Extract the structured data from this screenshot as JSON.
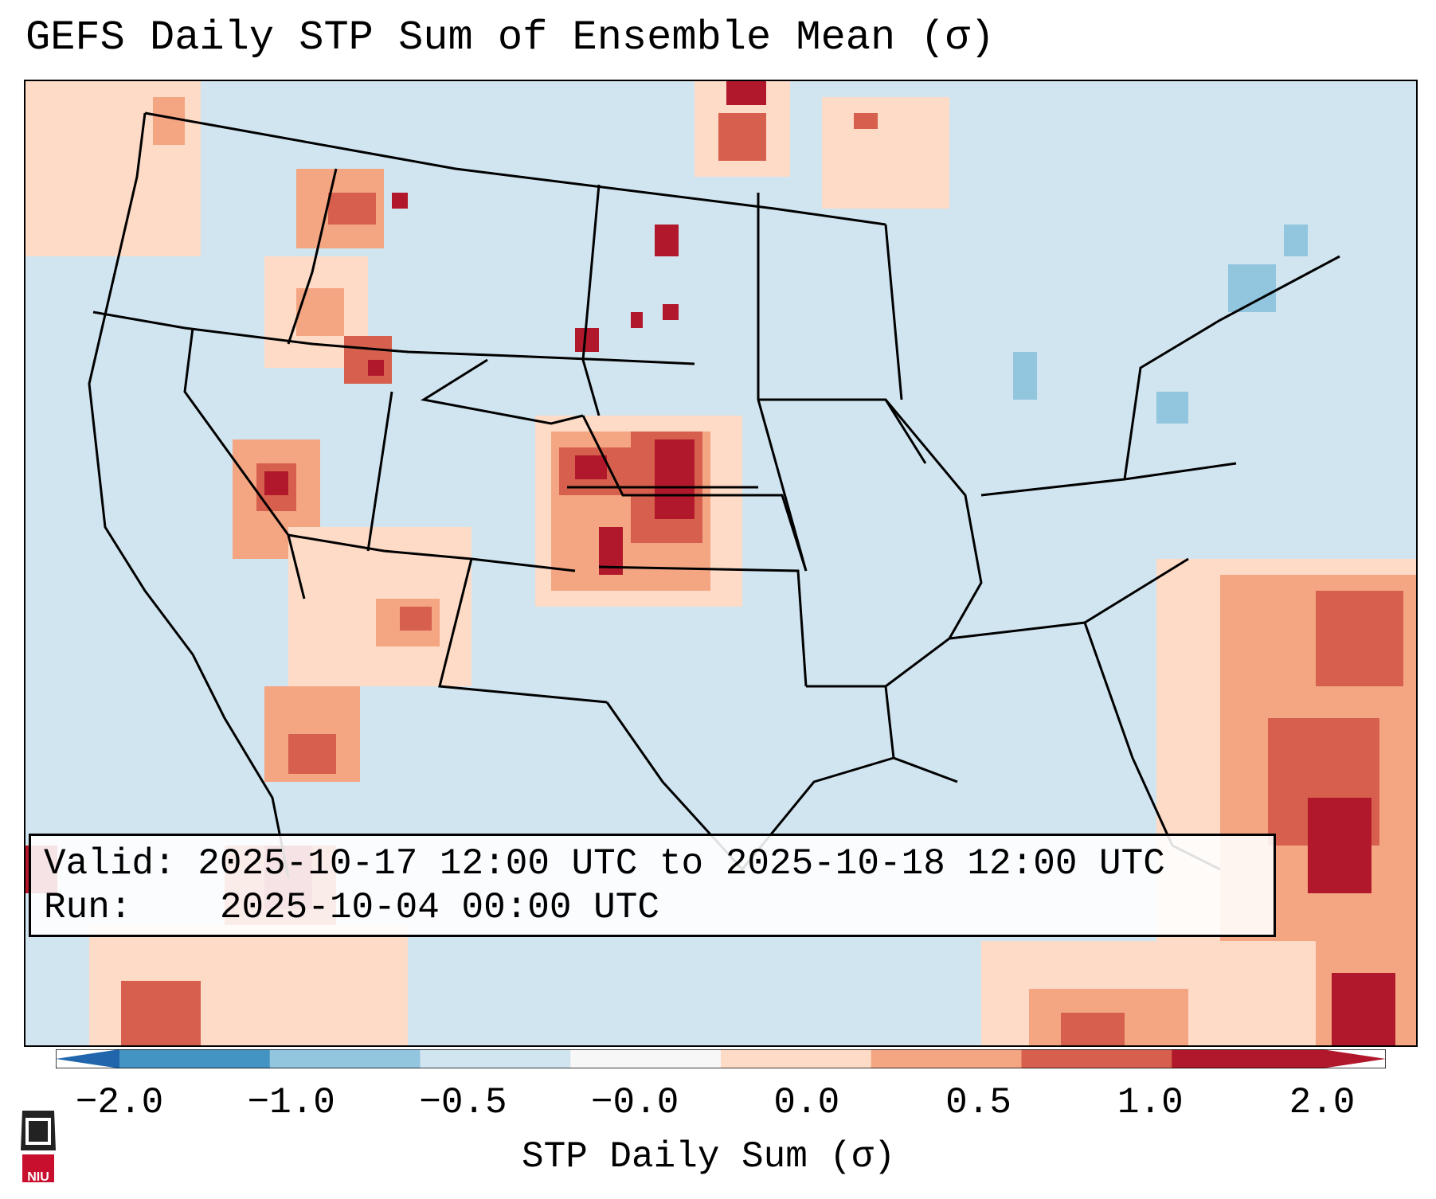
{
  "title": "GEFS Daily STP Sum of Ensemble Mean (σ)",
  "info": {
    "valid_label": "Valid:",
    "valid_value": "2025-10-17 12:00 UTC to 2025-10-18 12:00 UTC",
    "run_label": "Run:",
    "run_value": "2025-10-04 00:00 UTC"
  },
  "colorbar": {
    "label": "STP Daily Sum (σ)",
    "ticks": [
      "−2.0",
      "−1.0",
      "−0.5",
      "−0.0",
      "0.0",
      "0.5",
      "1.0",
      "2.0"
    ],
    "bin_colors": [
      "#4393c3",
      "#92c5de",
      "#d1e5f0",
      "#f7f7f7",
      "#fddbc7",
      "#f4a582",
      "#d6604d",
      "#b2182b"
    ],
    "under_color": "#2166ac",
    "over_color": "#b2182b",
    "extend": "both"
  },
  "map": {
    "projection": "lambert-conformal",
    "region": "CONUS",
    "background_color": "#d1e5f0",
    "boundary_color": "#000000",
    "anomaly_regions": [
      {
        "area": "Washington/Idaho panhandle",
        "level": "moderate"
      },
      {
        "area": "Eastern Oregon/Idaho",
        "level": "moderate"
      },
      {
        "area": "Nevada",
        "level": "moderate"
      },
      {
        "area": "Southwest Arizona/New Mexico",
        "level": "weak-moderate"
      },
      {
        "area": "Eastern Colorado/Nebraska/Kansas",
        "level": "strong"
      },
      {
        "area": "North Dakota/Manitoba",
        "level": "strong"
      },
      {
        "area": "Gulf of California/Mexico",
        "level": "strong"
      },
      {
        "area": "Western Atlantic/Bahamas",
        "level": "strong"
      },
      {
        "area": "Great Lakes/Northeast",
        "level": "negative-weak"
      }
    ]
  },
  "logo": {
    "text": "NIU"
  }
}
